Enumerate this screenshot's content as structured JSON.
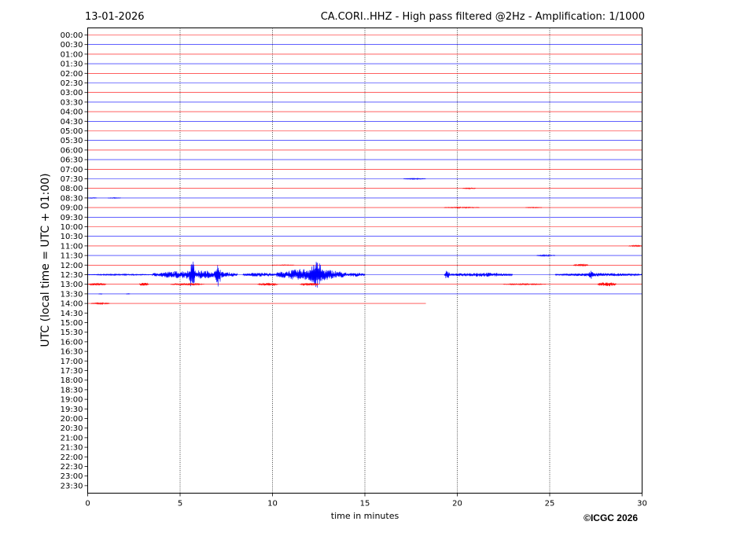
{
  "header": {
    "date": "13-01-2026",
    "title": "CA.CORI..HHZ - High pass filtered @2Hz - Amplification: 1/1000"
  },
  "footer": {
    "copyright": "©ICGC 2026"
  },
  "colors": {
    "trace_a": "#ff0000",
    "trace_b": "#0000ff",
    "grid": "#000000",
    "frame": "#000000"
  },
  "chart_data": {
    "type": "line",
    "title": "CA.CORI..HHZ - High pass filtered @2Hz - Amplification: 1/1000",
    "xlabel": "time in minutes",
    "ylabel": "UTC (local time = UTC + 01:00)",
    "xlim": [
      0,
      30
    ],
    "x_ticks": [
      0,
      5,
      10,
      15,
      20,
      25,
      30
    ],
    "grid": "vertical dotted at every x tick",
    "row_labels": [
      "00:00",
      "00:30",
      "01:00",
      "01:30",
      "02:00",
      "02:30",
      "03:00",
      "03:30",
      "04:00",
      "04:30",
      "05:00",
      "05:30",
      "06:00",
      "06:30",
      "07:00",
      "07:30",
      "08:00",
      "08:30",
      "09:00",
      "09:30",
      "10:00",
      "10:30",
      "11:00",
      "11:30",
      "12:00",
      "12:30",
      "13:00",
      "13:30",
      "14:00",
      "14:30",
      "15:00",
      "15:30",
      "16:00",
      "16:30",
      "17:00",
      "17:30",
      "18:00",
      "18:30",
      "19:00",
      "19:30",
      "20:00",
      "20:30",
      "21:00",
      "21:30",
      "22:00",
      "22:30",
      "23:00",
      "23:30"
    ],
    "row_colors": "alternating red and blue starting with red",
    "recorded_rows": 29,
    "last_row_end_minute": 18.3,
    "events": [
      {
        "row": "07:30",
        "start": 17.1,
        "end": 18.3,
        "amplitude": 0.12
      },
      {
        "row": "08:00",
        "start": 20.3,
        "end": 21.0,
        "amplitude": 0.12
      },
      {
        "row": "08:30",
        "start": 0.0,
        "end": 0.5,
        "amplitude": 0.08
      },
      {
        "row": "08:30",
        "start": 1.1,
        "end": 1.8,
        "amplitude": 0.08
      },
      {
        "row": "09:00",
        "start": 19.3,
        "end": 21.2,
        "amplitude": 0.12
      },
      {
        "row": "09:00",
        "start": 23.7,
        "end": 24.6,
        "amplitude": 0.08
      },
      {
        "row": "11:00",
        "start": 29.3,
        "end": 30.0,
        "amplitude": 0.15
      },
      {
        "row": "11:30",
        "start": 24.3,
        "end": 25.3,
        "amplitude": 0.15
      },
      {
        "row": "12:00",
        "start": 10.0,
        "end": 11.2,
        "amplitude": 0.08
      },
      {
        "row": "12:00",
        "start": 26.3,
        "end": 27.1,
        "amplitude": 0.22
      },
      {
        "row": "12:30",
        "start": 0.0,
        "end": 3.5,
        "amplitude": 0.15
      },
      {
        "row": "12:30",
        "start": 3.5,
        "end": 8.1,
        "amplitude": 0.9
      },
      {
        "row": "12:30",
        "start": 5.5,
        "end": 5.8,
        "amplitude": 3.2
      },
      {
        "row": "12:30",
        "start": 6.9,
        "end": 7.2,
        "amplitude": 2.8
      },
      {
        "row": "12:30",
        "start": 8.4,
        "end": 10.2,
        "amplitude": 0.45
      },
      {
        "row": "12:30",
        "start": 10.2,
        "end": 14.0,
        "amplitude": 1.3
      },
      {
        "row": "12:30",
        "start": 12.0,
        "end": 12.8,
        "amplitude": 2.8
      },
      {
        "row": "12:30",
        "start": 14.0,
        "end": 15.0,
        "amplitude": 0.45
      },
      {
        "row": "12:30",
        "start": 19.3,
        "end": 19.6,
        "amplitude": 0.9
      },
      {
        "row": "12:30",
        "start": 19.6,
        "end": 23.0,
        "amplitude": 0.45
      },
      {
        "row": "12:30",
        "start": 25.3,
        "end": 30.0,
        "amplitude": 0.35
      },
      {
        "row": "12:30",
        "start": 27.1,
        "end": 27.4,
        "amplitude": 0.9
      },
      {
        "row": "13:00",
        "start": 0.0,
        "end": 1.0,
        "amplitude": 0.25
      },
      {
        "row": "13:00",
        "start": 2.8,
        "end": 3.3,
        "amplitude": 0.35
      },
      {
        "row": "13:00",
        "start": 4.5,
        "end": 6.3,
        "amplitude": 0.2
      },
      {
        "row": "13:00",
        "start": 9.2,
        "end": 10.3,
        "amplitude": 0.3
      },
      {
        "row": "13:00",
        "start": 11.5,
        "end": 12.5,
        "amplitude": 0.3
      },
      {
        "row": "13:00",
        "start": 22.5,
        "end": 24.8,
        "amplitude": 0.15
      },
      {
        "row": "13:00",
        "start": 27.6,
        "end": 28.6,
        "amplitude": 0.5
      },
      {
        "row": "13:30",
        "start": 0.6,
        "end": 0.8,
        "amplitude": 0.08
      },
      {
        "row": "13:30",
        "start": 2.1,
        "end": 2.3,
        "amplitude": 0.08
      },
      {
        "row": "14:00",
        "start": 0.2,
        "end": 1.2,
        "amplitude": 0.15
      }
    ]
  }
}
